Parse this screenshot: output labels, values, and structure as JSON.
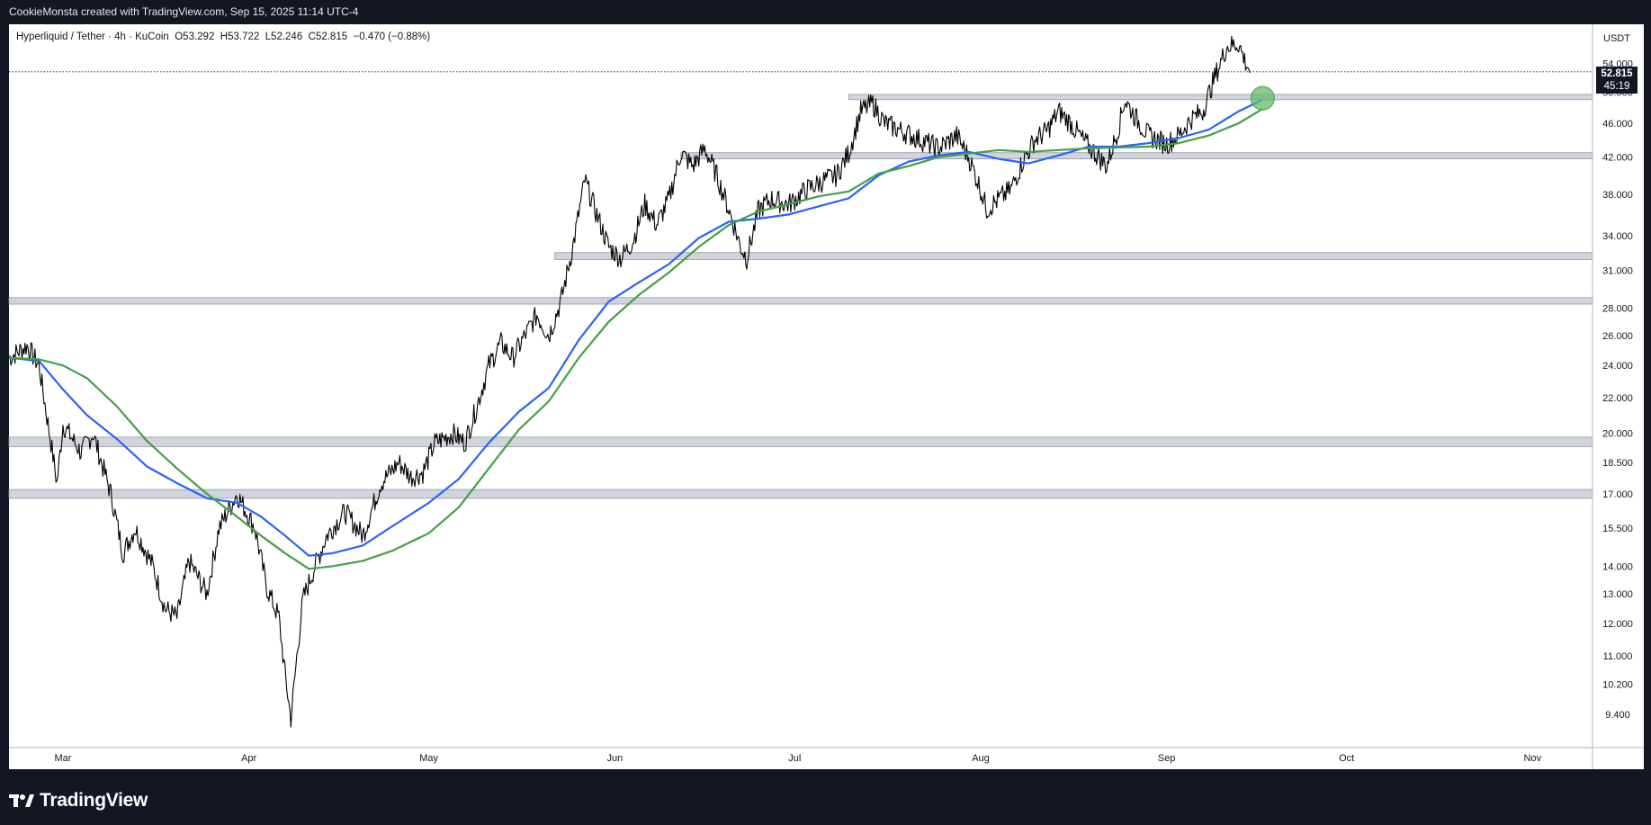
{
  "header": {
    "caption": "CookieMonsta created with TradingView.com, Sep 15, 2025 11:14 UTC-4"
  },
  "legend": {
    "symbol": "Hyperliquid / Tether · 4h · KuCoin",
    "open_label": "O",
    "open": "53.292",
    "high_label": "H",
    "high": "53.722",
    "low_label": "L",
    "low": "52.246",
    "close_label": "C",
    "close": "52.815",
    "change": "−0.470 (−0.88%)"
  },
  "price_scale": {
    "currency": "USDT",
    "last_price": "52.815",
    "countdown": "45:19"
  },
  "footer": {
    "brand": "TradingView",
    "logo_icon": "tradingview-logo-icon"
  },
  "colors": {
    "background": "#131722",
    "candles": "#000000",
    "ma_fast": "#2962ff",
    "ma_slow": "#43a047",
    "zones": "#d1d4dc",
    "target_circle": "#66bb6a"
  },
  "chart_data": {
    "type": "line",
    "scale": "log",
    "title": "",
    "xlabel": "",
    "ylabel": "",
    "ylim": [
      8.6,
      60
    ],
    "x_tick_labels": [
      "Mar",
      "Apr",
      "May",
      "Jun",
      "Jul",
      "Aug",
      "Sep",
      "Oct",
      "Nov"
    ],
    "x_tick_dates": [
      "2025-03-01",
      "2025-04-01",
      "2025-05-01",
      "2025-06-01",
      "2025-07-01",
      "2025-08-01",
      "2025-09-01",
      "2025-10-01",
      "2025-11-01"
    ],
    "xlim": [
      "2025-02-20",
      "2025-11-11"
    ],
    "y_ticks": [
      9.4,
      10.2,
      11,
      12,
      13,
      14,
      15.5,
      17,
      18.5,
      20,
      22,
      24,
      26,
      28,
      31,
      34,
      38,
      42,
      46,
      50,
      54
    ],
    "y_tick_labels": [
      "9.400",
      "10.200",
      "11.000",
      "12.000",
      "13.000",
      "14.000",
      "15.500",
      "17.000",
      "18.500",
      "20.000",
      "22.000",
      "24.000",
      "26.000",
      "28.000",
      "31.000",
      "34.000",
      "38.000",
      "42.000",
      "46.000",
      "50.000",
      "54.000"
    ],
    "last_price": 52.815,
    "price": {
      "name": "",
      "points": [
        [
          "2025-02-20",
          24.5
        ],
        [
          "2025-02-23",
          25.3
        ],
        [
          "2025-02-25",
          24.0
        ],
        [
          "2025-02-27",
          19.5
        ],
        [
          "2025-02-28",
          17.5
        ],
        [
          "2025-03-01",
          20.5
        ],
        [
          "2025-03-04",
          19.0
        ],
        [
          "2025-03-06",
          20.0
        ],
        [
          "2025-03-09",
          17.0
        ],
        [
          "2025-03-11",
          14.5
        ],
        [
          "2025-03-13",
          15.5
        ],
        [
          "2025-03-16",
          14.0
        ],
        [
          "2025-03-18",
          12.5
        ],
        [
          "2025-03-20",
          12.2
        ],
        [
          "2025-03-22",
          14.2
        ],
        [
          "2025-03-25",
          13.0
        ],
        [
          "2025-03-27",
          15.5
        ],
        [
          "2025-03-30",
          17.0
        ],
        [
          "2025-04-02",
          15.5
        ],
        [
          "2025-04-04",
          13.2
        ],
        [
          "2025-04-06",
          12.2
        ],
        [
          "2025-04-07",
          10.5
        ],
        [
          "2025-04-08",
          9.3
        ],
        [
          "2025-04-09",
          11.0
        ],
        [
          "2025-04-10",
          12.8
        ],
        [
          "2025-04-12",
          14.0
        ],
        [
          "2025-04-14",
          15.2
        ],
        [
          "2025-04-17",
          16.2
        ],
        [
          "2025-04-20",
          15.2
        ],
        [
          "2025-04-23",
          17.5
        ],
        [
          "2025-04-26",
          18.5
        ],
        [
          "2025-04-28",
          17.8
        ],
        [
          "2025-04-30",
          18.0
        ],
        [
          "2025-05-02",
          19.5
        ],
        [
          "2025-05-05",
          20.0
        ],
        [
          "2025-05-07",
          19.5
        ],
        [
          "2025-05-09",
          21.5
        ],
        [
          "2025-05-11",
          24.0
        ],
        [
          "2025-05-13",
          25.5
        ],
        [
          "2025-05-15",
          24.5
        ],
        [
          "2025-05-17",
          26.0
        ],
        [
          "2025-05-19",
          27.5
        ],
        [
          "2025-05-21",
          26.0
        ],
        [
          "2025-05-23",
          28.5
        ],
        [
          "2025-05-25",
          33.0
        ],
        [
          "2025-05-27",
          39.5
        ],
        [
          "2025-05-29",
          36.0
        ],
        [
          "2025-05-31",
          33.0
        ],
        [
          "2025-06-02",
          32.0
        ],
        [
          "2025-06-04",
          33.5
        ],
        [
          "2025-06-06",
          37.0
        ],
        [
          "2025-06-08",
          35.0
        ],
        [
          "2025-06-10",
          37.5
        ],
        [
          "2025-06-12",
          42.5
        ],
        [
          "2025-06-14",
          41.0
        ],
        [
          "2025-06-16",
          43.0
        ],
        [
          "2025-06-18",
          40.0
        ],
        [
          "2025-06-20",
          36.5
        ],
        [
          "2025-06-22",
          33.0
        ],
        [
          "2025-06-23",
          32.0
        ],
        [
          "2025-06-25",
          36.5
        ],
        [
          "2025-06-27",
          37.5
        ],
        [
          "2025-06-30",
          37.0
        ],
        [
          "2025-07-03",
          38.5
        ],
        [
          "2025-07-06",
          39.5
        ],
        [
          "2025-07-08",
          40.0
        ],
        [
          "2025-07-10",
          42.5
        ],
        [
          "2025-07-12",
          47.5
        ],
        [
          "2025-07-14",
          48.5
        ],
        [
          "2025-07-16",
          46.0
        ],
        [
          "2025-07-19",
          45.0
        ],
        [
          "2025-07-22",
          44.0
        ],
        [
          "2025-07-25",
          43.0
        ],
        [
          "2025-07-28",
          44.5
        ],
        [
          "2025-07-30",
          42.0
        ],
        [
          "2025-08-01",
          38.5
        ],
        [
          "2025-08-02",
          36.5
        ],
        [
          "2025-08-04",
          37.5
        ],
        [
          "2025-08-06",
          38.5
        ],
        [
          "2025-08-08",
          41.5
        ],
        [
          "2025-08-10",
          44.0
        ],
        [
          "2025-08-12",
          45.0
        ],
        [
          "2025-08-14",
          47.5
        ],
        [
          "2025-08-16",
          46.0
        ],
        [
          "2025-08-18",
          44.0
        ],
        [
          "2025-08-20",
          42.5
        ],
        [
          "2025-08-22",
          41.0
        ],
        [
          "2025-08-24",
          45.5
        ],
        [
          "2025-08-25",
          49.0
        ],
        [
          "2025-08-27",
          46.5
        ],
        [
          "2025-08-29",
          44.5
        ],
        [
          "2025-09-01",
          43.5
        ],
        [
          "2025-09-03",
          44.5
        ],
        [
          "2025-09-05",
          46.5
        ],
        [
          "2025-09-07",
          47.5
        ],
        [
          "2025-09-09",
          52.0
        ],
        [
          "2025-09-11",
          56.5
        ],
        [
          "2025-09-13",
          57.0
        ],
        [
          "2025-09-14",
          54.5
        ],
        [
          "2025-09-15",
          52.8
        ]
      ]
    },
    "series": [
      {
        "name": "",
        "color": "#2962ff",
        "points": [
          [
            "2025-02-20",
            24.5
          ],
          [
            "2025-02-25",
            24.3
          ],
          [
            "2025-03-01",
            22.5
          ],
          [
            "2025-03-05",
            21.0
          ],
          [
            "2025-03-10",
            19.7
          ],
          [
            "2025-03-15",
            18.3
          ],
          [
            "2025-03-20",
            17.5
          ],
          [
            "2025-03-25",
            16.8
          ],
          [
            "2025-03-30",
            16.6
          ],
          [
            "2025-04-03",
            16.0
          ],
          [
            "2025-04-07",
            15.2
          ],
          [
            "2025-04-11",
            14.4
          ],
          [
            "2025-04-15",
            14.5
          ],
          [
            "2025-04-20",
            14.8
          ],
          [
            "2025-04-25",
            15.6
          ],
          [
            "2025-05-01",
            16.6
          ],
          [
            "2025-05-06",
            17.7
          ],
          [
            "2025-05-11",
            19.5
          ],
          [
            "2025-05-16",
            21.2
          ],
          [
            "2025-05-21",
            22.6
          ],
          [
            "2025-05-26",
            25.7
          ],
          [
            "2025-05-31",
            28.5
          ],
          [
            "2025-06-05",
            30.0
          ],
          [
            "2025-06-10",
            31.5
          ],
          [
            "2025-06-15",
            33.8
          ],
          [
            "2025-06-20",
            35.3
          ],
          [
            "2025-06-25",
            35.6
          ],
          [
            "2025-06-30",
            36.0
          ],
          [
            "2025-07-05",
            36.8
          ],
          [
            "2025-07-10",
            37.6
          ],
          [
            "2025-07-15",
            40.0
          ],
          [
            "2025-07-20",
            41.5
          ],
          [
            "2025-07-25",
            42.2
          ],
          [
            "2025-07-30",
            42.6
          ],
          [
            "2025-08-04",
            41.8
          ],
          [
            "2025-08-09",
            41.3
          ],
          [
            "2025-08-14",
            42.2
          ],
          [
            "2025-08-19",
            43.2
          ],
          [
            "2025-08-24",
            43.2
          ],
          [
            "2025-08-29",
            43.6
          ],
          [
            "2025-09-03",
            44.2
          ],
          [
            "2025-09-08",
            45.2
          ],
          [
            "2025-09-13",
            47.5
          ],
          [
            "2025-09-17",
            49.0
          ]
        ]
      },
      {
        "name": "",
        "color": "#43a047",
        "points": [
          [
            "2025-02-20",
            24.5
          ],
          [
            "2025-02-25",
            24.4
          ],
          [
            "2025-03-01",
            24.0
          ],
          [
            "2025-03-05",
            23.2
          ],
          [
            "2025-03-10",
            21.5
          ],
          [
            "2025-03-15",
            19.6
          ],
          [
            "2025-03-20",
            18.2
          ],
          [
            "2025-03-25",
            17.0
          ],
          [
            "2025-03-30",
            16.0
          ],
          [
            "2025-04-03",
            15.2
          ],
          [
            "2025-04-07",
            14.5
          ],
          [
            "2025-04-11",
            13.9
          ],
          [
            "2025-04-15",
            14.0
          ],
          [
            "2025-04-20",
            14.2
          ],
          [
            "2025-04-25",
            14.6
          ],
          [
            "2025-05-01",
            15.3
          ],
          [
            "2025-05-06",
            16.4
          ],
          [
            "2025-05-11",
            18.2
          ],
          [
            "2025-05-16",
            20.2
          ],
          [
            "2025-05-21",
            21.8
          ],
          [
            "2025-05-26",
            24.5
          ],
          [
            "2025-05-31",
            27.0
          ],
          [
            "2025-06-05",
            29.0
          ],
          [
            "2025-06-10",
            30.8
          ],
          [
            "2025-06-15",
            33.0
          ],
          [
            "2025-06-20",
            35.0
          ],
          [
            "2025-06-25",
            36.3
          ],
          [
            "2025-06-30",
            37.0
          ],
          [
            "2025-07-05",
            37.8
          ],
          [
            "2025-07-10",
            38.3
          ],
          [
            "2025-07-15",
            40.2
          ],
          [
            "2025-07-20",
            41.0
          ],
          [
            "2025-07-25",
            42.0
          ],
          [
            "2025-07-30",
            42.4
          ],
          [
            "2025-08-04",
            42.8
          ],
          [
            "2025-08-09",
            42.6
          ],
          [
            "2025-08-14",
            42.8
          ],
          [
            "2025-08-19",
            43.0
          ],
          [
            "2025-08-24",
            43.1
          ],
          [
            "2025-08-29",
            43.2
          ],
          [
            "2025-09-03",
            43.6
          ],
          [
            "2025-09-08",
            44.5
          ],
          [
            "2025-09-13",
            46.0
          ],
          [
            "2025-09-17",
            47.8
          ]
        ]
      }
    ],
    "zones": [
      {
        "low": 49.0,
        "high": 49.7,
        "start": "2025-07-10"
      },
      {
        "low": 41.8,
        "high": 42.5,
        "start": "2025-06-12"
      },
      {
        "low": 31.9,
        "high": 32.5,
        "start": "2025-05-22"
      },
      {
        "low": 28.3,
        "high": 28.8,
        "start": "2025-02-20"
      },
      {
        "low": 19.3,
        "high": 19.8,
        "start": "2025-02-20"
      },
      {
        "low": 16.8,
        "high": 17.2,
        "start": "2025-02-20"
      }
    ],
    "marker": {
      "date": "2025-09-17",
      "value": 49.2
    }
  }
}
